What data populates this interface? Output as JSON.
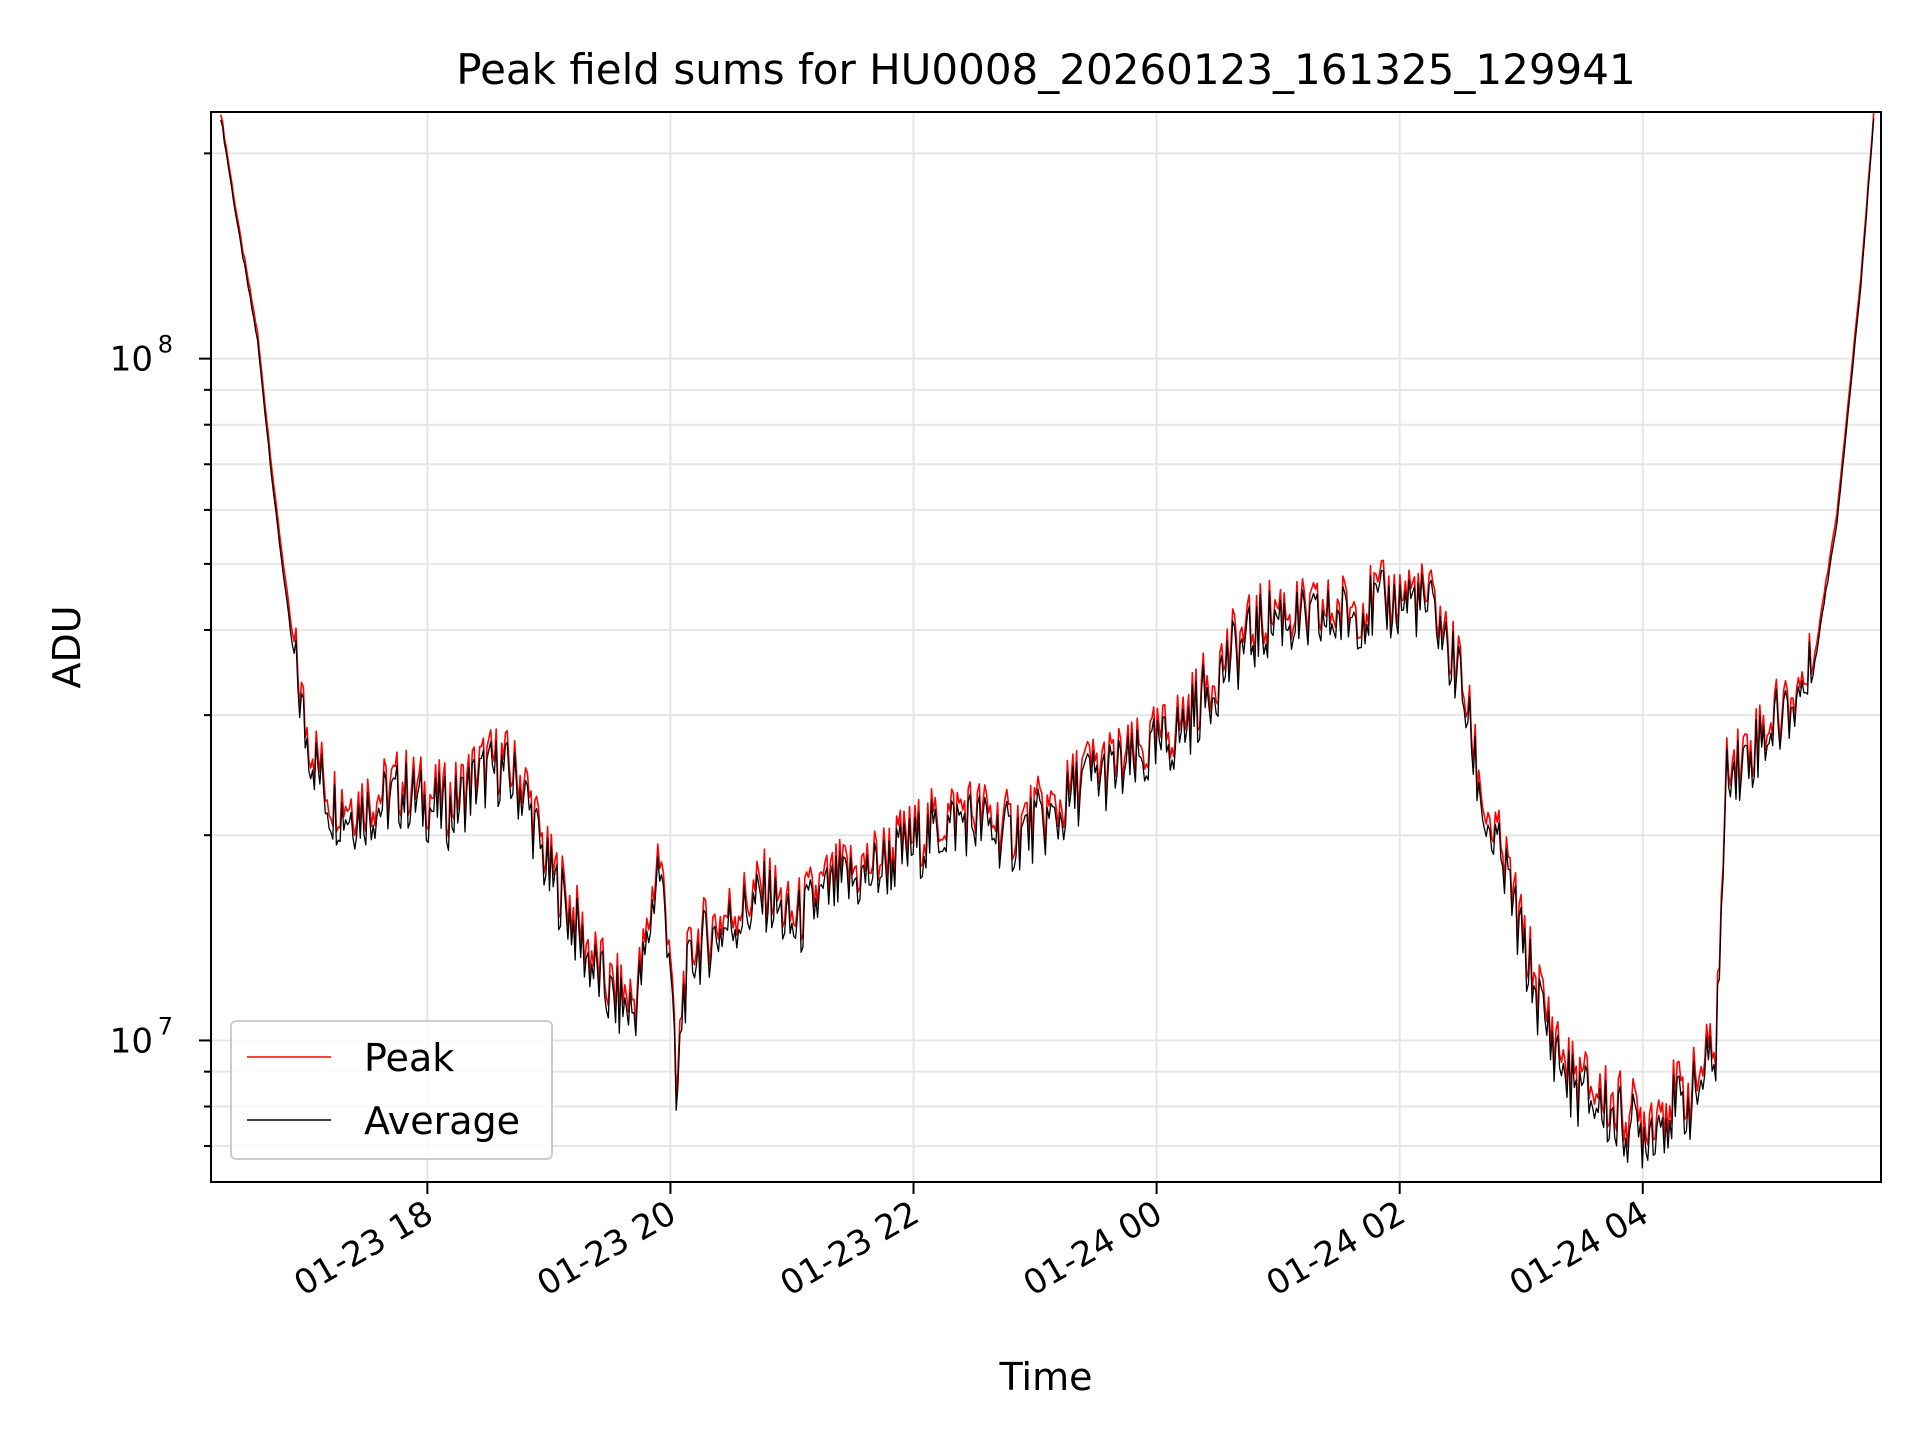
{
  "chart_data": {
    "type": "line",
    "title": "Peak field sums for HU0008_20260123_161325_129941",
    "xlabel": "Time",
    "ylabel": "ADU",
    "yscale": "log",
    "grid": true,
    "legend_position": "lower-left",
    "x_units": "hours since 2026-01-23 00:00",
    "xlim": [
      16.22,
      29.96
    ],
    "ylim": [
      6200000,
      230000000
    ],
    "x_ticks": [
      {
        "value": 18,
        "label": "01-23 18"
      },
      {
        "value": 20,
        "label": "01-23 20"
      },
      {
        "value": 22,
        "label": "01-23 22"
      },
      {
        "value": 24,
        "label": "01-24 00"
      },
      {
        "value": 26,
        "label": "01-24 02"
      },
      {
        "value": 28,
        "label": "01-24 04"
      }
    ],
    "y_ticks": [
      {
        "value": 10000000,
        "base": "10",
        "exp": "7"
      },
      {
        "value": 100000000,
        "base": "10",
        "exp": "8"
      }
    ],
    "colors": {
      "peak": "#ff0000",
      "average": "#000000",
      "grid": "#e6e6e6"
    },
    "series": [
      {
        "name": "Peak",
        "color": "#ff0000",
        "x": [
          16.3,
          16.45,
          16.6,
          16.75,
          16.9,
          17.0,
          17.2,
          17.4,
          17.6,
          17.8,
          18.0,
          18.2,
          18.4,
          18.6,
          18.8,
          19.0,
          19.1,
          19.3,
          19.5,
          19.7,
          19.8,
          19.9,
          20.0,
          20.05,
          20.1,
          20.2,
          20.4,
          20.6,
          20.8,
          21.0,
          21.2,
          21.4,
          21.6,
          21.8,
          22.0,
          22.2,
          22.4,
          22.6,
          22.8,
          23.0,
          23.2,
          23.4,
          23.6,
          23.8,
          24.0,
          24.2,
          24.4,
          24.6,
          24.8,
          25.0,
          25.2,
          25.4,
          25.6,
          25.8,
          26.0,
          26.1,
          26.2,
          26.3,
          26.4,
          26.5,
          26.7,
          26.9,
          27.0,
          27.2,
          27.4,
          27.6,
          27.8,
          28.0,
          28.2,
          28.4,
          28.6,
          28.7,
          28.8,
          29.0,
          29.2,
          29.4,
          29.6,
          29.8,
          29.9
        ],
        "values": [
          230000000,
          155000000,
          110000000,
          62000000,
          38000000,
          29000000,
          23000000,
          22500000,
          23000000,
          24000000,
          23000000,
          22500000,
          25000000,
          26000000,
          24000000,
          18000000,
          17000000,
          14000000,
          12000000,
          11500000,
          14000000,
          19000000,
          14000000,
          8000000,
          12000000,
          14000000,
          15000000,
          16000000,
          17000000,
          15000000,
          16500000,
          17500000,
          18000000,
          19000000,
          20000000,
          21000000,
          22000000,
          21500000,
          20500000,
          21500000,
          22000000,
          25000000,
          25500000,
          26000000,
          27500000,
          29500000,
          33000000,
          37500000,
          40500000,
          43500000,
          42000000,
          42500000,
          43500000,
          44500000,
          45000000,
          46000000,
          44500000,
          43500000,
          38000000,
          35000000,
          22000000,
          17500000,
          14500000,
          11000000,
          9000000,
          8500000,
          8000000,
          7700000,
          8200000,
          8500000,
          10000000,
          27000000,
          26000000,
          29000000,
          31500000,
          35500000,
          60000000,
          135000000,
          230000000
        ]
      },
      {
        "name": "Average",
        "color": "#000000",
        "x": [
          16.3,
          16.45,
          16.6,
          16.75,
          16.9,
          17.0,
          17.2,
          17.4,
          17.6,
          17.8,
          18.0,
          18.2,
          18.4,
          18.6,
          18.8,
          19.0,
          19.1,
          19.3,
          19.5,
          19.7,
          19.8,
          19.9,
          20.0,
          20.05,
          20.1,
          20.2,
          20.4,
          20.6,
          20.8,
          21.0,
          21.2,
          21.4,
          21.6,
          21.8,
          22.0,
          22.2,
          22.4,
          22.6,
          22.8,
          23.0,
          23.2,
          23.4,
          23.6,
          23.8,
          24.0,
          24.2,
          24.4,
          24.6,
          24.8,
          25.0,
          25.2,
          25.4,
          25.6,
          25.8,
          26.0,
          26.1,
          26.2,
          26.3,
          26.4,
          26.5,
          26.7,
          26.9,
          27.0,
          27.2,
          27.4,
          27.6,
          27.8,
          28.0,
          28.2,
          28.4,
          28.6,
          28.7,
          28.8,
          29.0,
          29.2,
          29.4,
          29.6,
          29.8,
          29.9
        ],
        "values": [
          226000000,
          152000000,
          107000000,
          60000000,
          36500000,
          28000000,
          22000000,
          21500000,
          22000000,
          23000000,
          22000000,
          21500000,
          24000000,
          25000000,
          23000000,
          17300000,
          16300000,
          13400000,
          11500000,
          11000000,
          13400000,
          18200000,
          13400000,
          7600000,
          11500000,
          13400000,
          14400000,
          15300000,
          16300000,
          14400000,
          15800000,
          16800000,
          17300000,
          18200000,
          19200000,
          20200000,
          21100000,
          20600000,
          19700000,
          20600000,
          21100000,
          24000000,
          24500000,
          25000000,
          26400000,
          28300000,
          31700000,
          36000000,
          39000000,
          42000000,
          40500000,
          41000000,
          42000000,
          43000000,
          43500000,
          44500000,
          43000000,
          42000000,
          36700000,
          33800000,
          21100000,
          16800000,
          13900000,
          10500000,
          8600000,
          8100000,
          7600000,
          7300000,
          7800000,
          8100000,
          9600000,
          26000000,
          25000000,
          28000000,
          30500000,
          34500000,
          58000000,
          131000000,
          226000000
        ]
      }
    ]
  }
}
